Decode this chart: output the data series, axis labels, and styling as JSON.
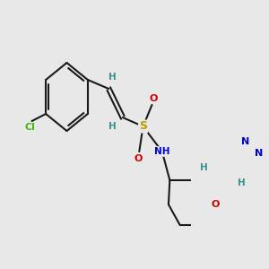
{
  "fig_bg": "#e8e8e8",
  "bond_color": "#1a1a1a",
  "bond_width": 1.5,
  "atom_colors": {
    "C": "#1a1a1a",
    "H": "#3a9090",
    "N": "#0000cc",
    "O": "#cc0000",
    "S": "#b8a000",
    "Cl": "#44bb00"
  },
  "font_size": 8.0
}
